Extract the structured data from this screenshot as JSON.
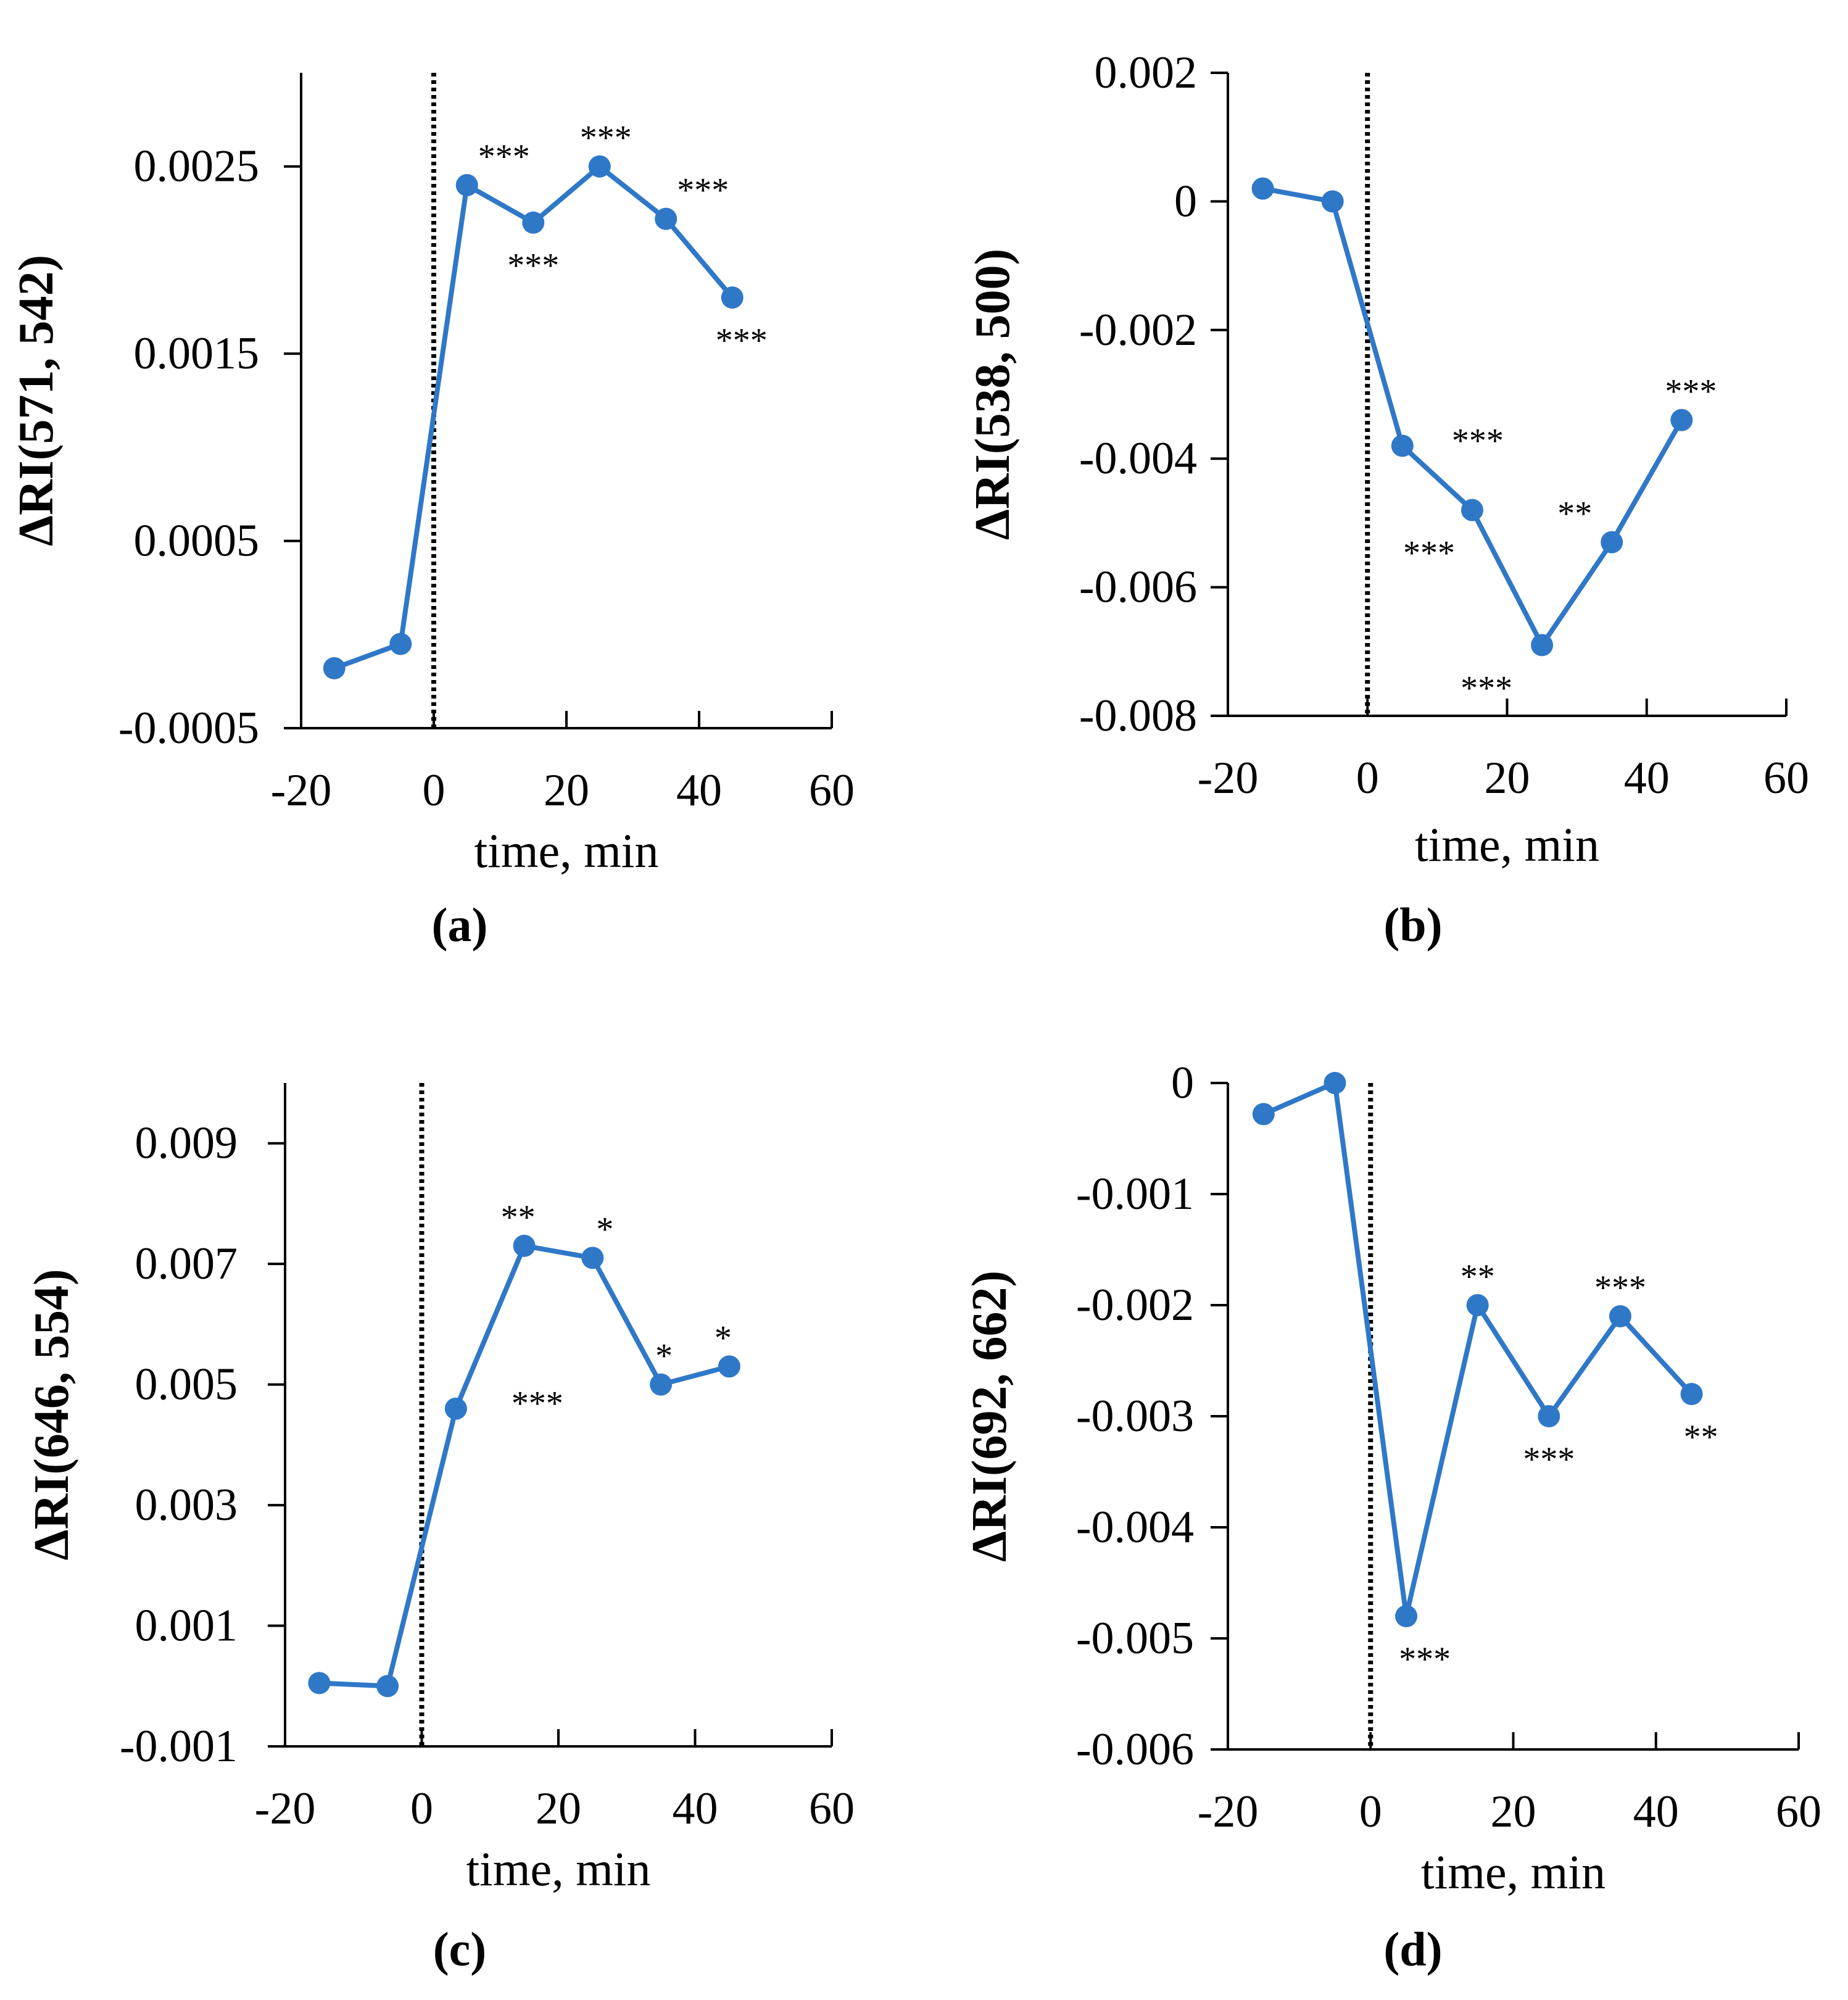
{
  "colors": {
    "series": "#2f78c8",
    "axis": "#000000",
    "marker_line": "#000000"
  },
  "chart_data": [
    {
      "type": "line",
      "panel_label": "(a)",
      "xlabel": "time, min",
      "ylabel": "ΔRI(571, 542)",
      "x": [
        -15,
        -5,
        5,
        15,
        25,
        35,
        45
      ],
      "series": [
        {
          "name": "ΔRI(571, 542)",
          "values": [
            -0.00018,
            -5e-05,
            0.0024,
            0.0022,
            0.0025,
            0.00222,
            0.0018
          ]
        }
      ],
      "significance": [
        "",
        "",
        "***",
        "***",
        "***",
        "***",
        "***"
      ],
      "xlim": [
        -20,
        60
      ],
      "xticks": [
        -20,
        0,
        20,
        40,
        60
      ],
      "ylim": [
        -0.0005,
        0.003
      ],
      "yticks": [
        -0.0005,
        0.0005,
        0.0015,
        0.0025
      ],
      "ytick_labels": [
        "-0.0005",
        "0.0005",
        "0.0015",
        "0.0025"
      ],
      "marker_line_x": 0
    },
    {
      "type": "line",
      "panel_label": "(b)",
      "xlabel": "time, min",
      "ylabel": "ΔRI(538, 500)",
      "x": [
        -15,
        -5,
        5,
        15,
        25,
        35,
        45
      ],
      "series": [
        {
          "name": "ΔRI(538, 500)",
          "values": [
            0.0002,
            0.0,
            -0.0038,
            -0.0048,
            -0.0069,
            -0.0053,
            -0.0034
          ]
        }
      ],
      "significance": [
        "",
        "",
        "***",
        "***",
        "***",
        "**",
        "***"
      ],
      "xlim": [
        -20,
        60
      ],
      "xticks": [
        -20,
        0,
        20,
        40,
        60
      ],
      "ylim": [
        -0.008,
        0.002
      ],
      "yticks": [
        -0.008,
        -0.006,
        -0.004,
        -0.002,
        0,
        0.002
      ],
      "ytick_labels": [
        "-0.008",
        "-0.006",
        "-0.004",
        "-0.002",
        "0",
        "0.002"
      ],
      "marker_line_x": 0
    },
    {
      "type": "line",
      "panel_label": "(c)",
      "xlabel": "time, min",
      "ylabel": "ΔRI(646, 554)",
      "x": [
        -15,
        -5,
        5,
        15,
        25,
        35,
        45
      ],
      "series": [
        {
          "name": "ΔRI(646, 554)",
          "values": [
            5e-05,
            0.0,
            0.0046,
            0.0073,
            0.0071,
            0.005,
            0.0053
          ]
        }
      ],
      "significance": [
        "",
        "",
        "***",
        "**",
        "*",
        "*",
        "*"
      ],
      "xlim": [
        -20,
        60
      ],
      "xticks": [
        -20,
        0,
        20,
        40,
        60
      ],
      "ylim": [
        -0.001,
        0.01
      ],
      "yticks": [
        -0.001,
        0.001,
        0.003,
        0.005,
        0.007,
        0.009
      ],
      "ytick_labels": [
        "-0.001",
        "0.001",
        "0.003",
        "0.005",
        "0.007",
        "0.009"
      ],
      "marker_line_x": 0
    },
    {
      "type": "line",
      "panel_label": "(d)",
      "xlabel": "time, min",
      "ylabel": "ΔRI(692, 662)",
      "x": [
        -15,
        -5,
        5,
        15,
        25,
        35,
        45
      ],
      "series": [
        {
          "name": "ΔRI(692, 662)",
          "values": [
            -0.00028,
            0.0,
            -0.0048,
            -0.002,
            -0.003,
            -0.0021,
            -0.0028
          ]
        }
      ],
      "significance": [
        "",
        "",
        "***",
        "**",
        "***",
        "***",
        "**"
      ],
      "xlim": [
        -20,
        60
      ],
      "xticks": [
        -20,
        0,
        20,
        40,
        60
      ],
      "ylim": [
        -0.006,
        0
      ],
      "yticks": [
        -0.006,
        -0.005,
        -0.004,
        -0.003,
        -0.002,
        -0.001,
        0
      ],
      "ytick_labels": [
        "-0.006",
        "-0.005",
        "-0.004",
        "-0.003",
        "-0.002",
        "-0.001",
        "0"
      ],
      "marker_line_x": 0
    }
  ]
}
